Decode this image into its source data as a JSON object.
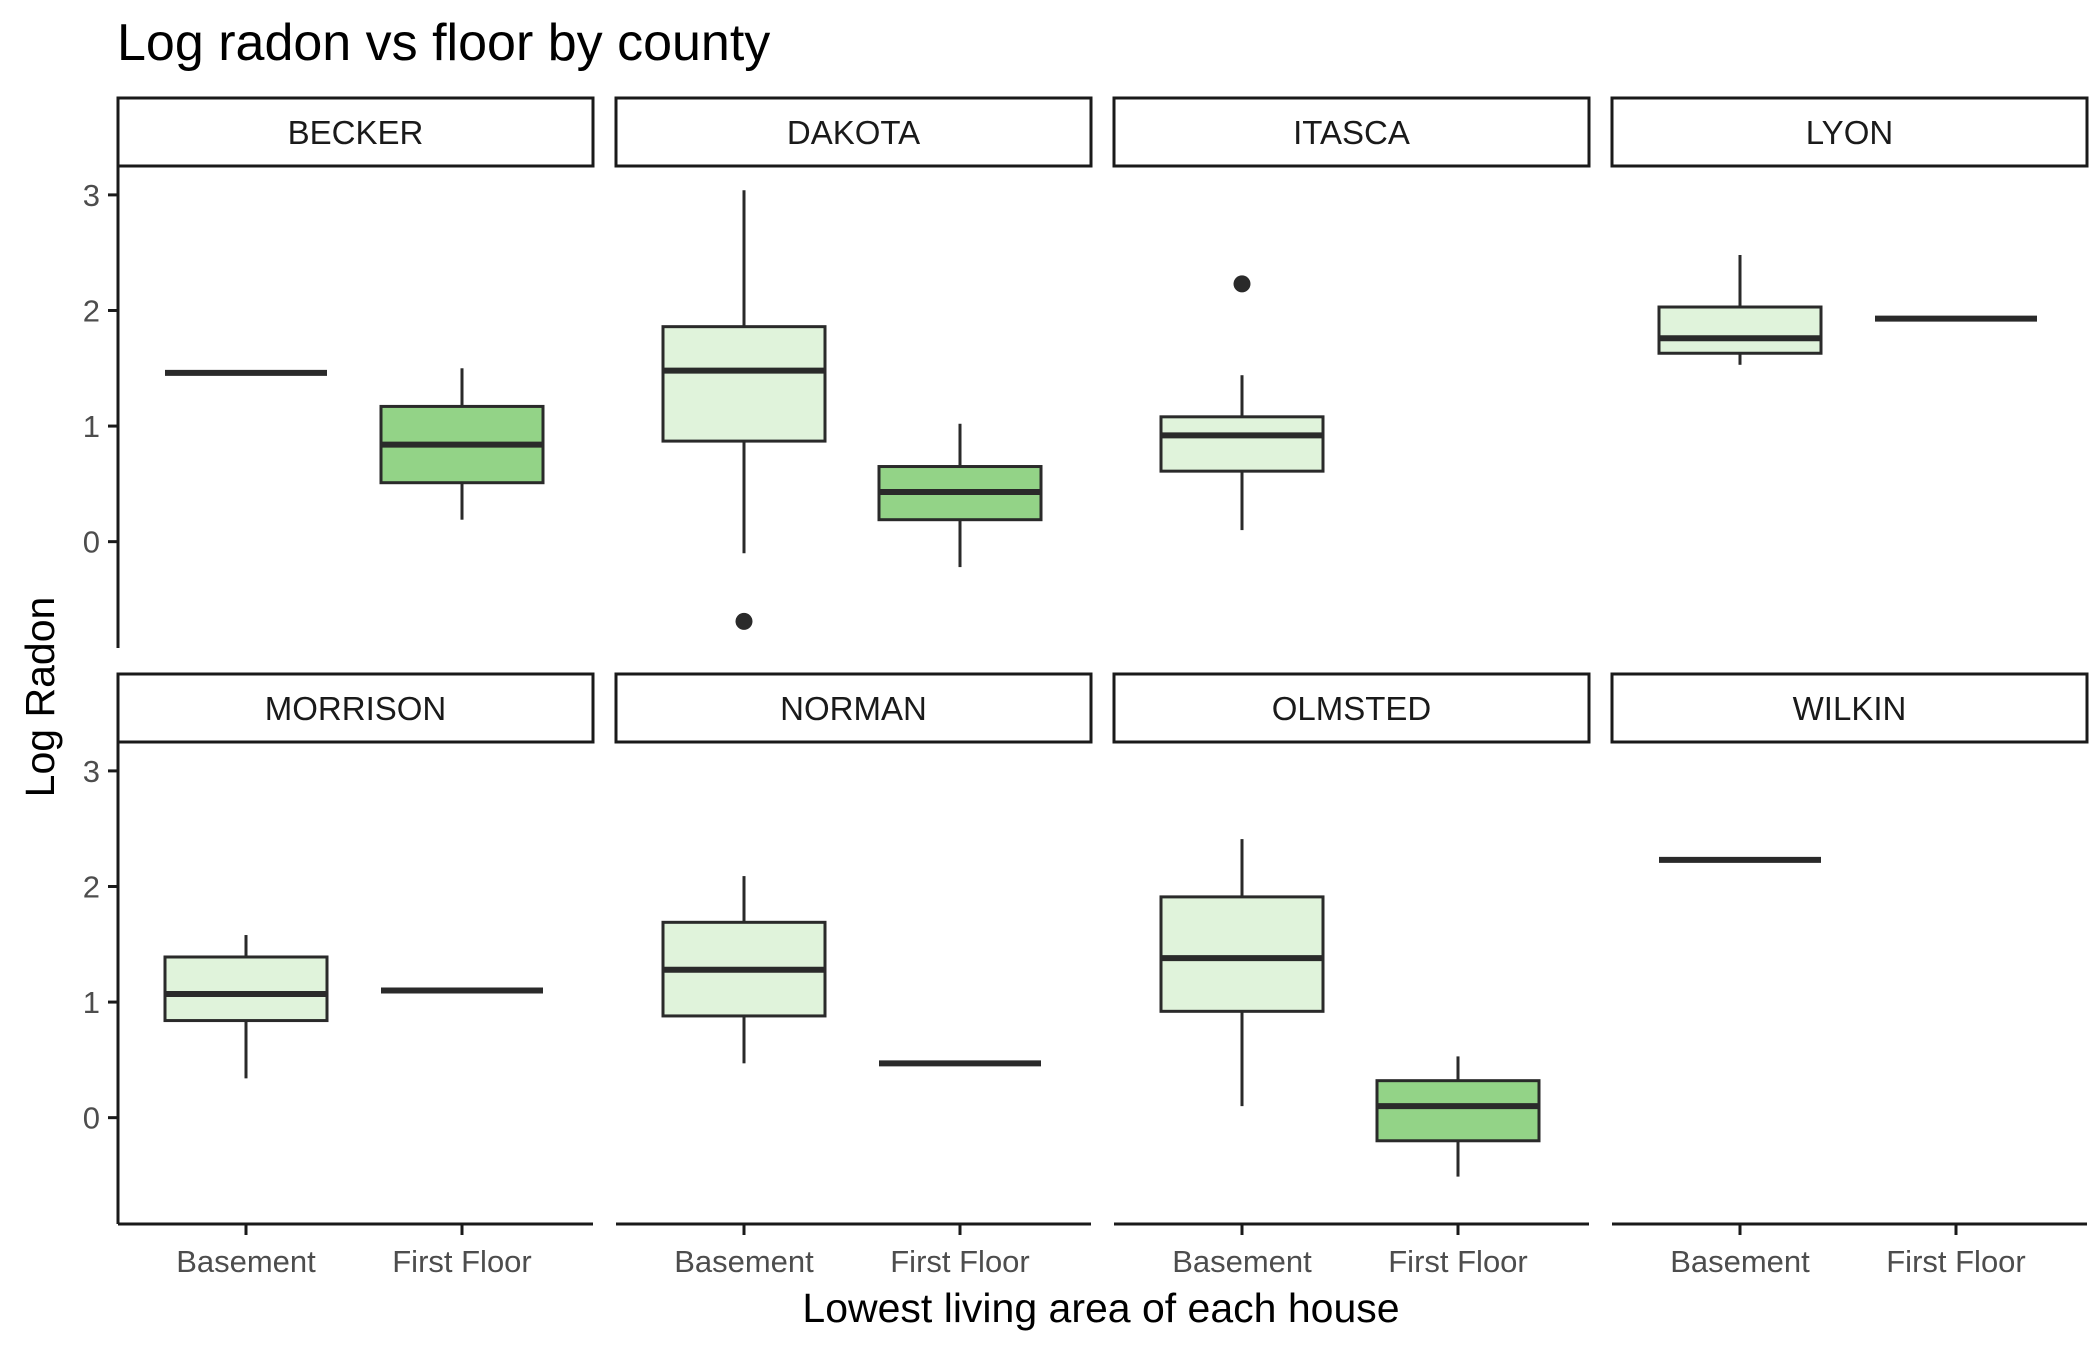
{
  "chart_data": {
    "type": "box",
    "title": "Log radon vs floor by county",
    "xlabel": "Lowest living area of each house",
    "ylabel": "Log Radon",
    "categories": [
      "Basement",
      "First Floor"
    ],
    "y_ticks": [
      0,
      1,
      2,
      3
    ],
    "ylim": [
      -0.92,
      3.25
    ],
    "layout": "facet grid, 2 rows x 4 columns",
    "colors": {
      "Basement": "#e0f3db",
      "First Floor": "#93d387"
    },
    "panels": [
      {
        "county": "BECKER",
        "boxes": [
          {
            "category": "Basement",
            "min": 1.46,
            "q1": 1.46,
            "median": 1.46,
            "q3": 1.46,
            "max": 1.46,
            "outliers": []
          },
          {
            "category": "First Floor",
            "min": 0.19,
            "q1": 0.51,
            "median": 0.84,
            "q3": 1.17,
            "max": 1.5,
            "outliers": []
          }
        ]
      },
      {
        "county": "DAKOTA",
        "boxes": [
          {
            "category": "Basement",
            "min": -0.1,
            "q1": 0.87,
            "median": 1.48,
            "q3": 1.86,
            "max": 3.04,
            "outliers": [
              -0.69
            ]
          },
          {
            "category": "First Floor",
            "min": -0.22,
            "q1": 0.19,
            "median": 0.43,
            "q3": 0.65,
            "max": 1.02,
            "outliers": []
          }
        ]
      },
      {
        "county": "ITASCA",
        "boxes": [
          {
            "category": "Basement",
            "min": 0.1,
            "q1": 0.61,
            "median": 0.92,
            "q3": 1.08,
            "max": 1.44,
            "outliers": [
              2.23
            ]
          }
        ]
      },
      {
        "county": "LYON",
        "boxes": [
          {
            "category": "Basement",
            "min": 1.53,
            "q1": 1.63,
            "median": 1.76,
            "q3": 2.03,
            "max": 2.48,
            "outliers": []
          },
          {
            "category": "First Floor",
            "min": 1.93,
            "q1": 1.93,
            "median": 1.93,
            "q3": 1.93,
            "max": 1.93,
            "outliers": []
          }
        ]
      },
      {
        "county": "MORRISON",
        "boxes": [
          {
            "category": "Basement",
            "min": 0.34,
            "q1": 0.84,
            "median": 1.07,
            "q3": 1.39,
            "max": 1.58,
            "outliers": []
          },
          {
            "category": "First Floor",
            "min": 1.1,
            "q1": 1.1,
            "median": 1.1,
            "q3": 1.1,
            "max": 1.1,
            "outliers": []
          }
        ]
      },
      {
        "county": "NORMAN",
        "boxes": [
          {
            "category": "Basement",
            "min": 0.47,
            "q1": 0.88,
            "median": 1.28,
            "q3": 1.69,
            "max": 2.09,
            "outliers": []
          },
          {
            "category": "First Floor",
            "min": 0.47,
            "q1": 0.47,
            "median": 0.47,
            "q3": 0.47,
            "max": 0.47,
            "outliers": []
          }
        ]
      },
      {
        "county": "OLMSTED",
        "boxes": [
          {
            "category": "Basement",
            "min": 0.1,
            "q1": 0.92,
            "median": 1.38,
            "q3": 1.91,
            "max": 2.41,
            "outliers": []
          },
          {
            "category": "First Floor",
            "min": -0.51,
            "q1": -0.2,
            "median": 0.1,
            "q3": 0.32,
            "max": 0.53,
            "outliers": []
          }
        ]
      },
      {
        "county": "WILKIN",
        "boxes": [
          {
            "category": "Basement",
            "min": 2.23,
            "q1": 2.23,
            "median": 2.23,
            "q3": 2.23,
            "max": 2.23,
            "outliers": []
          }
        ]
      }
    ]
  }
}
